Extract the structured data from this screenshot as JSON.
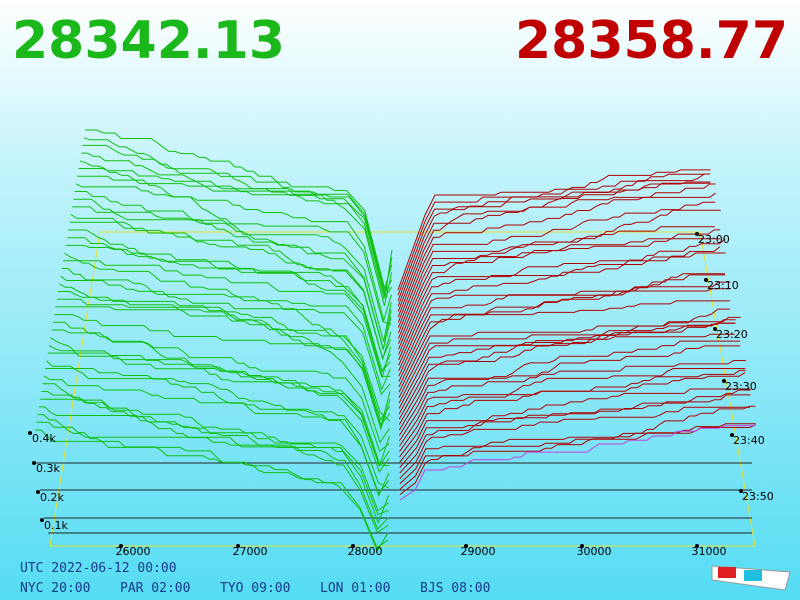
{
  "header": {
    "bid": "28342.13",
    "ask": "28358.77"
  },
  "price_axis": {
    "labels": [
      "26000",
      "27000",
      "28000",
      "29000",
      "30000",
      "31000"
    ]
  },
  "volume_axis": {
    "labels": [
      "0.4k",
      "0.3k",
      "0.2k",
      "0.1k"
    ]
  },
  "time_axis": {
    "labels": [
      "23:00",
      "23:10",
      "23:20",
      "23:30",
      "23:40",
      "23:50"
    ]
  },
  "footer": {
    "utc": "UTC 2022-06-12 00:00",
    "zones": [
      "NYC 20:00",
      "PAR 02:00",
      "TYO 09:00",
      "LON 01:00",
      "BJS 08:00"
    ]
  }
}
